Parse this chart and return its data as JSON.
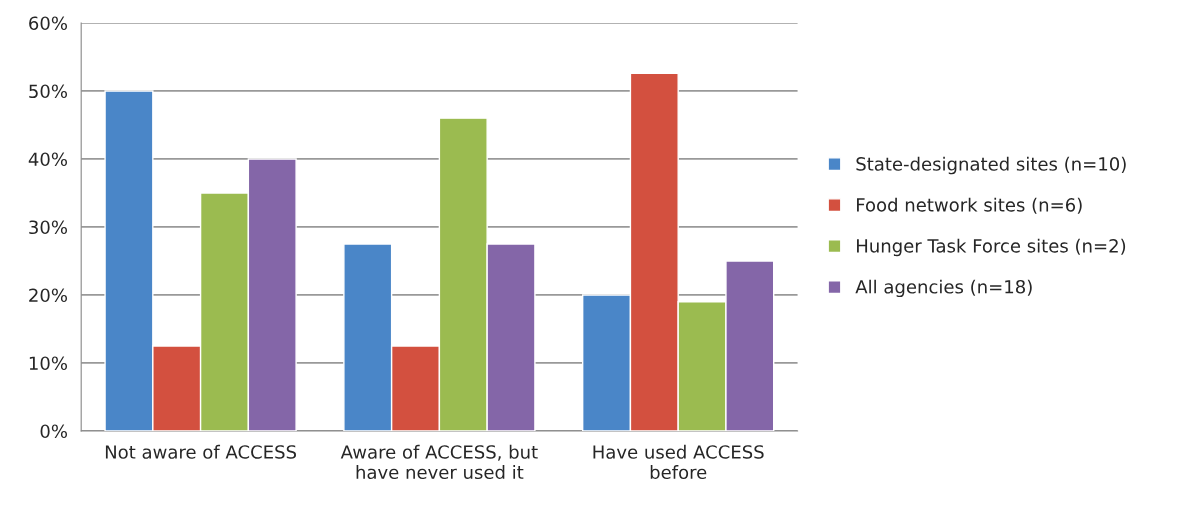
{
  "chart_data": {
    "type": "bar",
    "categories": [
      "Not aware of ACCESS",
      "Aware of ACCESS, but\nhave never used it",
      "Have used ACCESS\nbefore"
    ],
    "series": [
      {
        "name": "State-designated sites (n=10)",
        "color": "#4a86c8",
        "values": [
          50,
          27.5,
          20
        ]
      },
      {
        "name": "Food network sites (n=6)",
        "color": "#d3503f",
        "values": [
          12.5,
          12.5,
          52.6
        ]
      },
      {
        "name": "Hunger Task Force sites (n=2)",
        "color": "#9bbb50",
        "values": [
          35,
          46,
          19
        ]
      },
      {
        "name": "All agencies (n=18)",
        "color": "#8466a8",
        "values": [
          40,
          27.5,
          25
        ]
      }
    ],
    "ylim": [
      0,
      60
    ],
    "yticks": [
      {
        "value": 0,
        "label": "0%"
      },
      {
        "value": 10,
        "label": "10%"
      },
      {
        "value": 20,
        "label": "20%"
      },
      {
        "value": 30,
        "label": "30%"
      },
      {
        "value": 40,
        "label": "40%"
      },
      {
        "value": 50,
        "label": "50%"
      },
      {
        "value": 60,
        "label": "60%"
      }
    ],
    "grid": "y",
    "legend": "right"
  }
}
